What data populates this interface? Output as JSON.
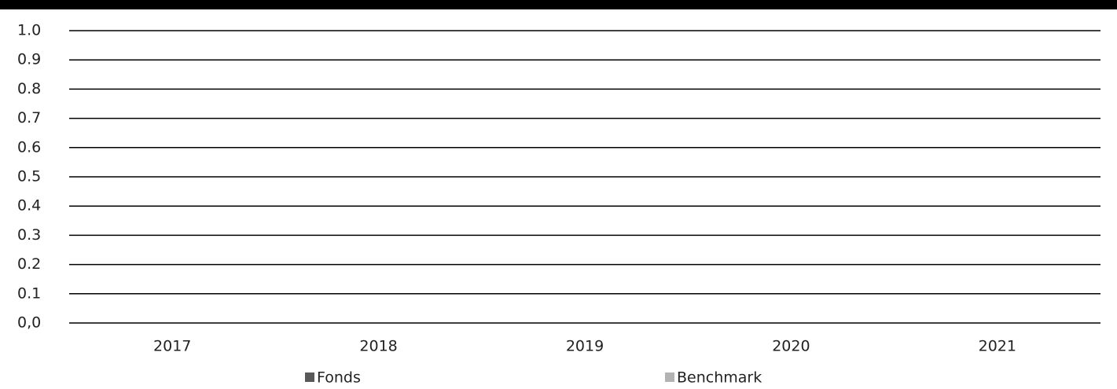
{
  "chart_data": {
    "type": "bar",
    "categories": [
      "2017",
      "2018",
      "2019",
      "2020",
      "2021"
    ],
    "series": [
      {
        "name": "Fonds",
        "color": "#595959",
        "values": [
          null,
          null,
          null,
          null,
          null
        ]
      },
      {
        "name": "Benchmark",
        "color": "#b3b3b3",
        "values": [
          null,
          null,
          null,
          null,
          null
        ]
      }
    ],
    "ylim": [
      0,
      1
    ],
    "yticks": [
      {
        "value": 0,
        "label": "0,0"
      },
      0.1,
      0.2,
      0.3,
      0.4,
      0.5,
      0.6,
      0.7,
      0.8,
      0.9,
      {
        "value": 1,
        "label": "1.0"
      }
    ],
    "grid": true,
    "legend": "bottom"
  }
}
